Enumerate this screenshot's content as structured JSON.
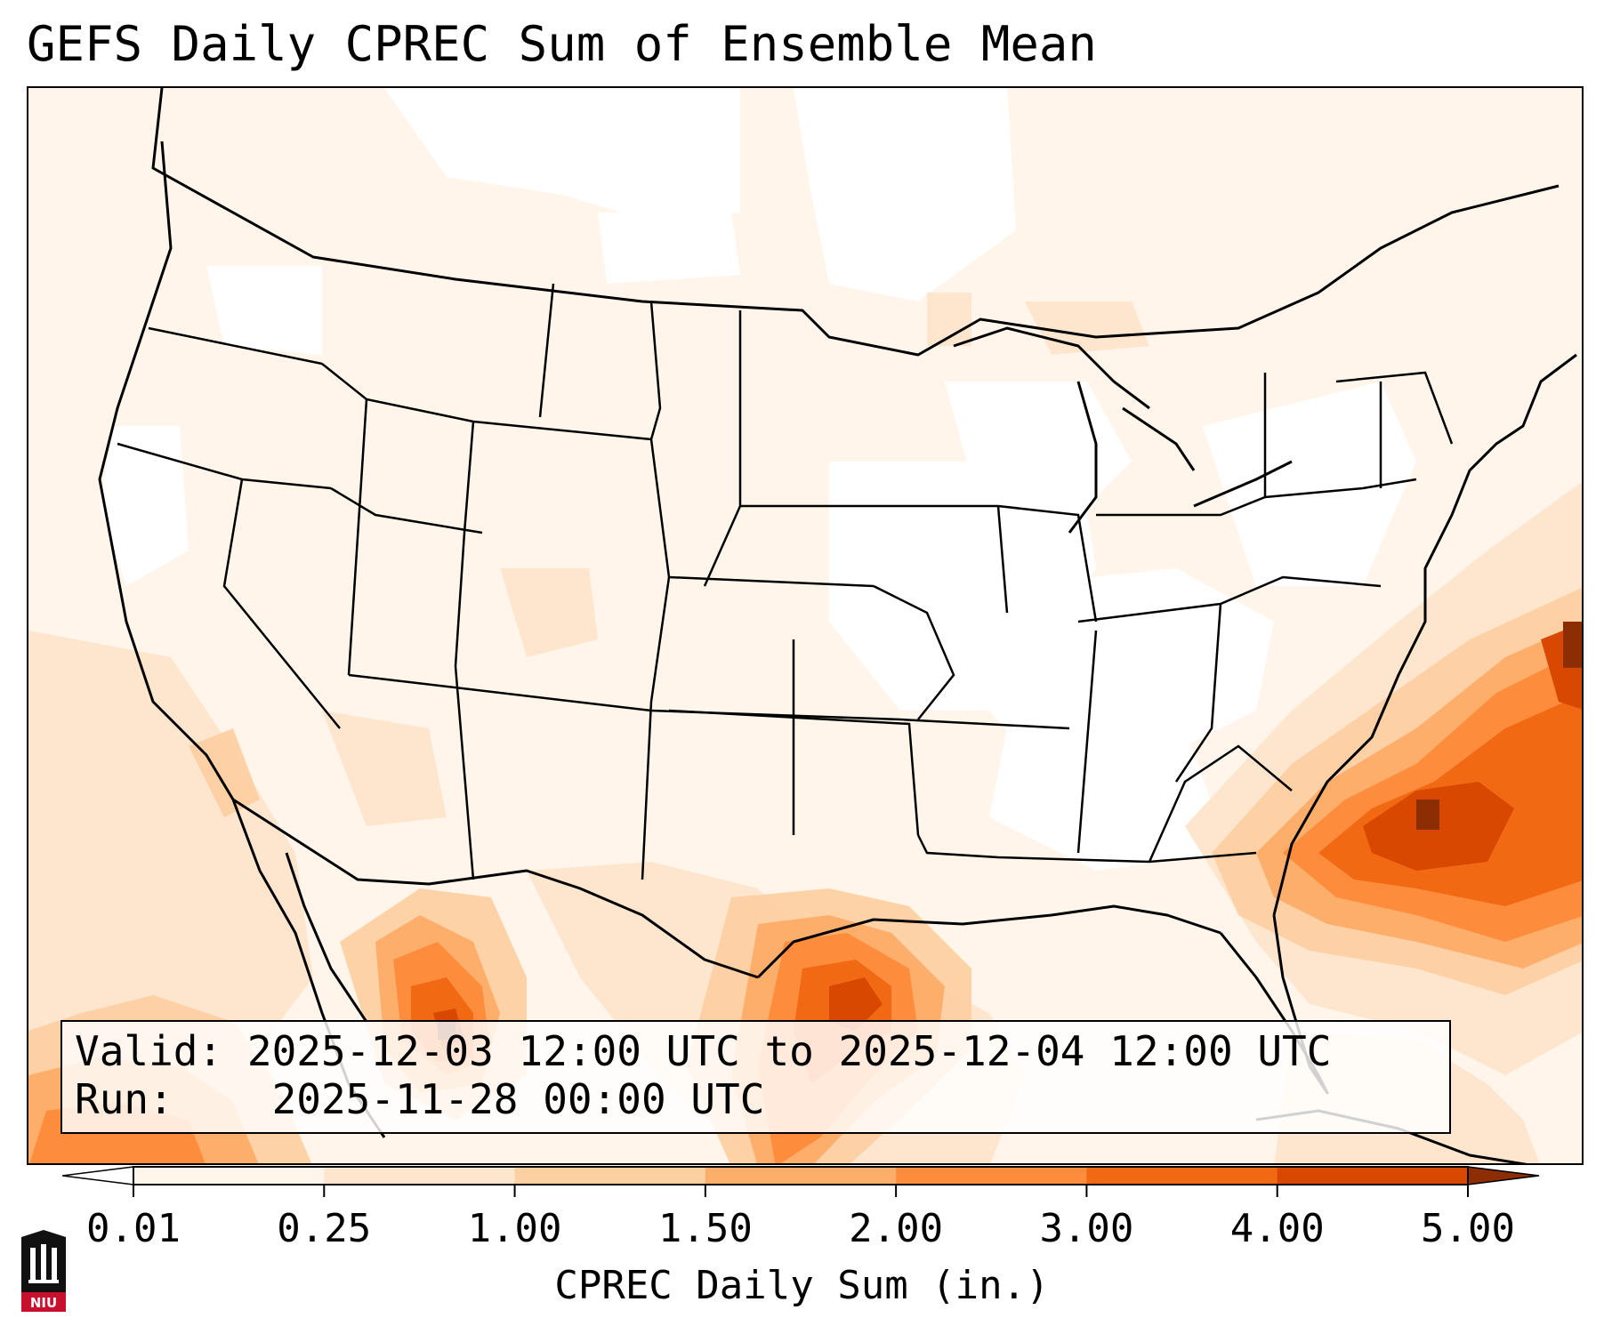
{
  "title": "GEFS Daily CPREC Sum of Ensemble Mean",
  "info": {
    "valid_label": "Valid:",
    "valid_value": "2025-12-03 12:00 UTC to 2025-12-04 12:00 UTC",
    "run_label": "Run:",
    "run_value": "2025-11-28 00:00 UTC"
  },
  "colorbar": {
    "label": "CPREC Daily Sum (in.)",
    "ticks": [
      "0.01",
      "0.25",
      "1.00",
      "1.50",
      "2.00",
      "3.00",
      "4.00",
      "5.00"
    ],
    "colors": [
      "#fff5eb",
      "#fee6ce",
      "#fdd0a2",
      "#fdae6b",
      "#fd8d3c",
      "#f16913",
      "#d94801",
      "#8c2d04"
    ],
    "extend": "both"
  },
  "logo": {
    "text": "NIU",
    "color": "#c8102e"
  },
  "map": {
    "projection": "Lambert conformal, CONUS",
    "max_precip_regions": [
      "Western Atlantic off Carolinas",
      "Gulf of Mexico off Texas",
      "Sierra Madre Oriental, Mexico",
      "Eastern Pacific off Baja California"
    ]
  }
}
